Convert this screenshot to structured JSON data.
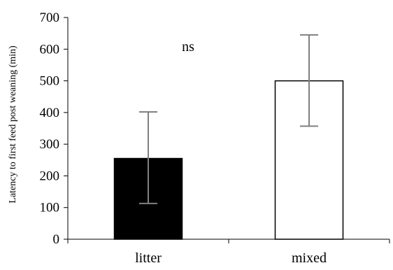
{
  "chart_data": {
    "type": "bar",
    "title": "",
    "xlabel": "",
    "ylabel": "Latency to first feed post weaning (min)",
    "ylim": [
      0,
      700
    ],
    "yticks": [
      0,
      100,
      200,
      300,
      400,
      500,
      600,
      700
    ],
    "categories": [
      "litter",
      "mixed"
    ],
    "series": [
      {
        "values": [
          255,
          500
        ],
        "error_upper": [
          402,
          645
        ],
        "error_lower": [
          113,
          357
        ],
        "fill_colors": [
          "#000000",
          "#ffffff"
        ]
      }
    ],
    "annotations": [
      {
        "text": "ns",
        "x_between": [
          "litter",
          "mixed"
        ],
        "y": 610
      }
    ],
    "grid": false,
    "legend": "none",
    "colors": {
      "axis": "#000000",
      "error_bar": "#808080",
      "bar_stroke": "#000000"
    }
  }
}
